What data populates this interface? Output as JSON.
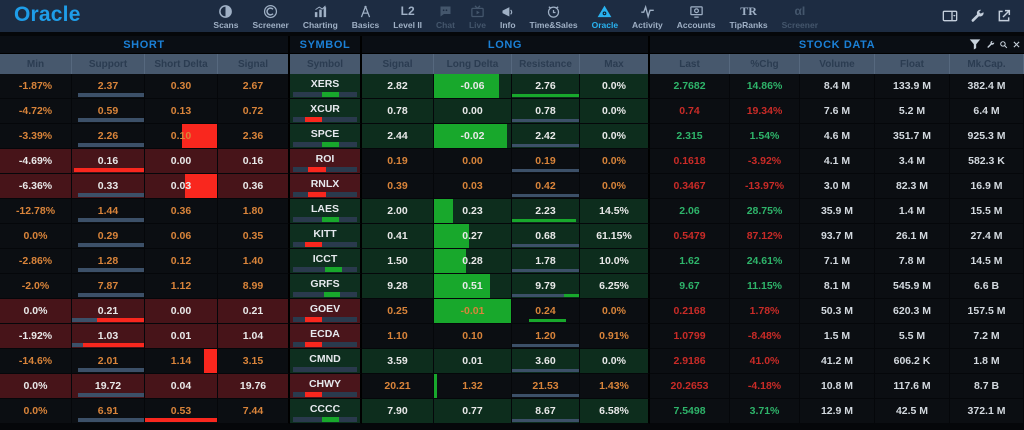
{
  "app": {
    "logo": "Oracle"
  },
  "nav": {
    "items": [
      {
        "label": "Scans",
        "icon": "scans",
        "state": "normal"
      },
      {
        "label": "Screener",
        "icon": "screener",
        "state": "normal"
      },
      {
        "label": "Charting",
        "icon": "charting",
        "state": "normal"
      },
      {
        "label": "Basics",
        "icon": "basics",
        "state": "normal"
      },
      {
        "label": "Level II",
        "icon": "level2",
        "state": "normal"
      },
      {
        "label": "Chat",
        "icon": "chat",
        "state": "disabled"
      },
      {
        "label": "Live",
        "icon": "live",
        "state": "disabled"
      },
      {
        "label": "Info",
        "icon": "info",
        "state": "normal"
      },
      {
        "label": "Time&Sales",
        "icon": "timesales",
        "state": "normal"
      },
      {
        "label": "Oracle",
        "icon": "oracle",
        "state": "active"
      },
      {
        "label": "Activity",
        "icon": "activity",
        "state": "normal"
      },
      {
        "label": "Accounts",
        "icon": "accounts",
        "state": "normal"
      },
      {
        "label": "TipRanks",
        "icon": "tipranks",
        "state": "normal"
      },
      {
        "label": "Screener",
        "icon": "alpha",
        "state": "disabled"
      }
    ]
  },
  "window_controls": [
    {
      "name": "layout-selector-button",
      "icon": "layout"
    },
    {
      "name": "settings-wrench-button",
      "icon": "wrench"
    },
    {
      "name": "popout-button",
      "icon": "external"
    }
  ],
  "panel": {
    "groups": [
      {
        "title": "SHORT"
      },
      {
        "title": "SYMBOL"
      },
      {
        "title": "LONG"
      },
      {
        "title": "STOCK DATA"
      }
    ],
    "columns": [
      "Min",
      "Support",
      "Short Delta",
      "Signal",
      "Symbol",
      "Signal",
      "Long Delta",
      "Resistance",
      "Max",
      "Last",
      "%Chg",
      "Volume",
      "Float",
      "Mk.Cap."
    ],
    "controls": [
      {
        "name": "filter-button",
        "icon": "funnel"
      },
      {
        "name": "panel-settings-button",
        "icon": "wrench"
      },
      {
        "name": "panel-search-button",
        "icon": "search"
      },
      {
        "name": "panel-close-button",
        "icon": "close"
      }
    ]
  },
  "colors": {
    "accent_blue": "#1b80d6",
    "logo_blue": "#1e9de8",
    "active_blue": "#29b3f0",
    "up": "#2eb46a",
    "down": "#c92b27",
    "orange": "#d9843a",
    "brightGreen": "#18a82c",
    "brightRed": "#f9271e",
    "slate": "#3c5068",
    "track": "#2a3a4d"
  },
  "rows": [
    {
      "sym": "XERS",
      "symTone": "green",
      "symBar": {
        "c": "green",
        "l": 46,
        "w": 24
      },
      "short": {
        "t": "dark",
        "min": "-1.87%",
        "sup": "2.37",
        "delta": "0.30",
        "sig": "2.67",
        "supBar": [
          {
            "c": "slate",
            "l": 8,
            "w": 92
          }
        ]
      },
      "long": {
        "t": "green",
        "sig": "2.82",
        "delta": "-0.06",
        "res": "2.76",
        "max": "0.0%",
        "deltaBlock": {
          "c": "green",
          "w": 85
        },
        "resBar": [
          {
            "c": "green",
            "l": 0,
            "w": 100
          }
        ]
      },
      "stock": {
        "last": "2.7682",
        "lt": "up",
        "chg": "14.86%",
        "ct": "up",
        "vol": "8.4 M",
        "flt": "133.9 M",
        "cap": "382.4 M"
      }
    },
    {
      "sym": "XCUR",
      "symTone": "green",
      "symBar": {
        "c": "red",
        "l": 22,
        "w": 24
      },
      "short": {
        "t": "dark",
        "min": "-4.72%",
        "sup": "0.59",
        "delta": "0.13",
        "sig": "0.72",
        "supBar": [
          {
            "c": "slate",
            "l": 8,
            "w": 92
          }
        ]
      },
      "long": {
        "t": "green",
        "sig": "0.78",
        "delta": "0.00",
        "res": "0.78",
        "max": "0.0%",
        "resBar": [
          {
            "c": "slate",
            "l": 0,
            "w": 100
          }
        ]
      },
      "stock": {
        "last": "0.74",
        "lt": "down",
        "chg": "19.34%",
        "ct": "down",
        "vol": "7.6 M",
        "flt": "5.2 M",
        "cap": "6.4 M"
      }
    },
    {
      "sym": "SPCE",
      "symTone": "green",
      "symBar": {
        "c": "green",
        "l": 46,
        "w": 24
      },
      "short": {
        "t": "dark",
        "min": "-3.39%",
        "sup": "2.26",
        "delta": "0.10",
        "sig": "2.36",
        "supBar": [
          {
            "c": "slate",
            "l": 8,
            "w": 92
          }
        ],
        "deltaBlock": {
          "c": "red",
          "side": "right",
          "w": 48
        }
      },
      "long": {
        "t": "green",
        "sig": "2.44",
        "delta": "-0.02",
        "res": "2.42",
        "max": "0.0%",
        "deltaBlock": {
          "c": "green",
          "w": 95
        },
        "resBar": [
          {
            "c": "slate",
            "l": 0,
            "w": 100
          }
        ]
      },
      "stock": {
        "last": "2.315",
        "lt": "up",
        "chg": "1.54%",
        "ct": "up",
        "vol": "4.6 M",
        "flt": "351.7 M",
        "cap": "925.3 M"
      }
    },
    {
      "sym": "ROI",
      "symTone": "red",
      "symBar": {
        "c": "red",
        "l": 25,
        "w": 26
      },
      "short": {
        "t": "red",
        "min": "-4.69%",
        "sup": "0.16",
        "delta": "0.00",
        "sig": "0.16",
        "supBar": [
          {
            "c": "red",
            "l": 3,
            "w": 97
          }
        ]
      },
      "long": {
        "t": "dark",
        "sig": "0.19",
        "delta": "0.00",
        "res": "0.19",
        "max": "0.0%",
        "resBar": [
          {
            "c": "slate",
            "l": 0,
            "w": 100
          }
        ]
      },
      "stock": {
        "last": "0.1618",
        "lt": "down",
        "chg": "-3.92%",
        "ct": "down",
        "vol": "4.1 M",
        "flt": "3.4 M",
        "cap": "582.3 K"
      }
    },
    {
      "sym": "RNLX",
      "symTone": "red",
      "symBar": {
        "c": "red",
        "l": 25,
        "w": 26
      },
      "short": {
        "t": "red",
        "min": "-6.36%",
        "sup": "0.33",
        "delta": "0.03",
        "sig": "0.36",
        "supBar": [
          {
            "c": "slate",
            "l": 8,
            "w": 92
          }
        ],
        "deltaBlock": {
          "c": "red",
          "side": "right",
          "w": 45
        }
      },
      "long": {
        "t": "dark",
        "sig": "0.39",
        "delta": "0.03",
        "res": "0.42",
        "max": "0.0%",
        "resBar": [
          {
            "c": "slate",
            "l": 0,
            "w": 100
          }
        ]
      },
      "stock": {
        "last": "0.3467",
        "lt": "down",
        "chg": "-13.97%",
        "ct": "down",
        "vol": "3.0 M",
        "flt": "82.3 M",
        "cap": "16.9 M"
      }
    },
    {
      "sym": "LAES",
      "symTone": "green",
      "symBar": {
        "c": "green",
        "l": 46,
        "w": 24
      },
      "short": {
        "t": "dark",
        "min": "-12.78%",
        "sup": "1.44",
        "delta": "0.36",
        "sig": "1.80",
        "supBar": [
          {
            "c": "slate",
            "l": 8,
            "w": 92
          }
        ]
      },
      "long": {
        "t": "green",
        "sig": "2.00",
        "delta": "0.23",
        "res": "2.23",
        "max": "14.5%",
        "deltaBlock": {
          "c": "green",
          "w": 25
        },
        "resBar": [
          {
            "c": "green",
            "l": 0,
            "w": 95
          }
        ]
      },
      "stock": {
        "last": "2.06",
        "lt": "up",
        "chg": "28.75%",
        "ct": "up",
        "vol": "35.9 M",
        "flt": "1.4 M",
        "cap": "15.5 M"
      }
    },
    {
      "sym": "KITT",
      "symTone": "green",
      "symBar": {
        "c": "red",
        "l": 22,
        "w": 24
      },
      "short": {
        "t": "dark",
        "min": "0.0%",
        "sup": "0.29",
        "delta": "0.06",
        "sig": "0.35",
        "supBar": [
          {
            "c": "slate",
            "l": 8,
            "w": 92
          }
        ]
      },
      "long": {
        "t": "green",
        "sig": "0.41",
        "delta": "0.27",
        "res": "0.68",
        "max": "61.15%",
        "deltaBlock": {
          "c": "green",
          "w": 45
        },
        "resBar": [
          {
            "c": "slate",
            "l": 0,
            "w": 100
          }
        ]
      },
      "stock": {
        "last": "0.5479",
        "lt": "down",
        "chg": "87.12%",
        "ct": "down",
        "vol": "93.7 M",
        "flt": "26.1 M",
        "cap": "27.4 M"
      }
    },
    {
      "sym": "ICCT",
      "symTone": "green",
      "symBar": {
        "c": "green",
        "l": 50,
        "w": 24
      },
      "short": {
        "t": "dark",
        "min": "-2.86%",
        "sup": "1.28",
        "delta": "0.12",
        "sig": "1.40",
        "supBar": [
          {
            "c": "slate",
            "l": 8,
            "w": 92
          }
        ]
      },
      "long": {
        "t": "green",
        "sig": "1.50",
        "delta": "0.28",
        "res": "1.78",
        "max": "10.0%",
        "deltaBlock": {
          "c": "green",
          "w": 42
        },
        "resBar": [
          {
            "c": "slate",
            "l": 0,
            "w": 100
          }
        ]
      },
      "stock": {
        "last": "1.62",
        "lt": "up",
        "chg": "24.61%",
        "ct": "up",
        "vol": "7.1 M",
        "flt": "7.8 M",
        "cap": "14.5 M"
      }
    },
    {
      "sym": "GRFS",
      "symTone": "green",
      "symBar": {
        "c": "green",
        "l": 48,
        "w": 24
      },
      "short": {
        "t": "dark",
        "min": "-2.0%",
        "sup": "7.87",
        "delta": "1.12",
        "sig": "8.99",
        "supBar": [
          {
            "c": "slate",
            "l": 8,
            "w": 92
          }
        ]
      },
      "long": {
        "t": "green",
        "sig": "9.28",
        "delta": "0.51",
        "res": "9.79",
        "max": "6.25%",
        "deltaBlock": {
          "c": "green",
          "w": 73
        },
        "resBar": [
          {
            "c": "slate",
            "l": 0,
            "w": 78
          },
          {
            "c": "green",
            "l": 78,
            "w": 22
          }
        ]
      },
      "stock": {
        "last": "9.67",
        "lt": "up",
        "chg": "11.15%",
        "ct": "up",
        "vol": "8.1 M",
        "flt": "545.9 M",
        "cap": "6.6 B"
      }
    },
    {
      "sym": "GOEV",
      "symTone": "red",
      "symBar": {
        "c": "red",
        "l": 22,
        "w": 24
      },
      "short": {
        "t": "red",
        "min": "0.0%",
        "sup": "0.21",
        "delta": "0.00",
        "sig": "0.21",
        "supBar": [
          {
            "c": "slate",
            "l": 0,
            "w": 35
          },
          {
            "c": "red",
            "l": 35,
            "w": 65
          }
        ]
      },
      "long": {
        "t": "dark",
        "sig": "0.25",
        "delta": "-0.01",
        "res": "0.24",
        "max": "0.0%",
        "deltaBlock": {
          "c": "green",
          "w": 100
        },
        "resBar": [
          {
            "c": "green",
            "l": 25,
            "w": 55
          }
        ]
      },
      "stock": {
        "last": "0.2168",
        "lt": "down",
        "chg": "1.78%",
        "ct": "down",
        "vol": "50.3 M",
        "flt": "620.3 M",
        "cap": "157.5 M"
      }
    },
    {
      "sym": "ECDA",
      "symTone": "red",
      "symBar": {
        "c": "red",
        "l": 22,
        "w": 24
      },
      "short": {
        "t": "red",
        "min": "-1.92%",
        "sup": "1.03",
        "delta": "0.01",
        "sig": "1.04",
        "supBar": [
          {
            "c": "slate",
            "l": 0,
            "w": 15
          },
          {
            "c": "red",
            "l": 15,
            "w": 85
          }
        ]
      },
      "long": {
        "t": "dark",
        "sig": "1.10",
        "delta": "0.10",
        "res": "1.20",
        "max": "0.91%",
        "resBar": [
          {
            "c": "slate",
            "l": 0,
            "w": 100
          }
        ]
      },
      "stock": {
        "last": "1.0799",
        "lt": "down",
        "chg": "-8.48%",
        "ct": "down",
        "vol": "1.5 M",
        "flt": "5.5 M",
        "cap": "7.2 M"
      }
    },
    {
      "sym": "CMND",
      "symTone": "green",
      "symBar": null,
      "short": {
        "t": "dark",
        "min": "-14.6%",
        "sup": "2.01",
        "delta": "1.14",
        "sig": "3.15",
        "supBar": [
          {
            "c": "slate",
            "l": 8,
            "w": 92
          }
        ],
        "deltaBlock": {
          "c": "red",
          "side": "right",
          "w": 18
        }
      },
      "long": {
        "t": "green",
        "sig": "3.59",
        "delta": "0.01",
        "res": "3.60",
        "max": "0.0%",
        "resBar": [
          {
            "c": "slate",
            "l": 0,
            "w": 100
          }
        ]
      },
      "stock": {
        "last": "2.9186",
        "lt": "down",
        "chg": "41.0%",
        "ct": "down",
        "vol": "41.2 M",
        "flt": "606.2 K",
        "cap": "1.8 M"
      }
    },
    {
      "sym": "CHWY",
      "symTone": "red",
      "symBar": {
        "c": "red",
        "l": 22,
        "w": 24
      },
      "short": {
        "t": "red",
        "min": "0.0%",
        "sup": "19.72",
        "delta": "0.04",
        "sig": "19.76",
        "supBar": [
          {
            "c": "slate",
            "l": 8,
            "w": 92
          }
        ]
      },
      "long": {
        "t": "dark",
        "sig": "20.21",
        "delta": "1.32",
        "res": "21.53",
        "max": "1.43%",
        "deltaBlock": {
          "c": "green",
          "w": 4
        },
        "resBar": [
          {
            "c": "slate",
            "l": 0,
            "w": 100
          }
        ]
      },
      "stock": {
        "last": "20.2653",
        "lt": "down",
        "chg": "-4.18%",
        "ct": "down",
        "vol": "10.8 M",
        "flt": "117.6 M",
        "cap": "8.7 B"
      }
    },
    {
      "sym": "CCCC",
      "symTone": "green",
      "symBar": {
        "c": "green",
        "l": 46,
        "w": 24
      },
      "short": {
        "t": "dark",
        "min": "0.0%",
        "sup": "6.91",
        "delta": "0.53",
        "sig": "7.44",
        "supBar": [
          {
            "c": "slate",
            "l": 8,
            "w": 92
          }
        ],
        "deltaBar": [
          {
            "c": "red",
            "l": 0,
            "w": 100
          }
        ]
      },
      "long": {
        "t": "green",
        "sig": "7.90",
        "delta": "0.77",
        "res": "8.67",
        "max": "6.58%",
        "resBar": [
          {
            "c": "slate",
            "l": 0,
            "w": 100
          }
        ]
      },
      "stock": {
        "last": "7.5498",
        "lt": "up",
        "chg": "3.71%",
        "ct": "up",
        "vol": "12.9 M",
        "flt": "42.5 M",
        "cap": "372.1 M"
      }
    }
  ]
}
